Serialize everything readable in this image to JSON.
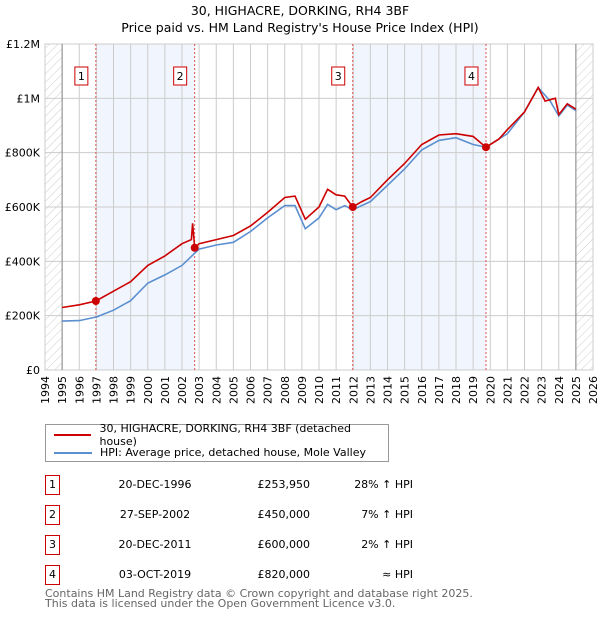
{
  "chart_data": {
    "type": "line",
    "title": "30, HIGHACRE, DORKING, RH4 3BF",
    "subtitle": "Price paid vs. HM Land Registry's House Price Index (HPI)",
    "xlim": [
      1994,
      2026
    ],
    "ylim": [
      0,
      1200000
    ],
    "x_ticks": [
      "1994",
      "1995",
      "1996",
      "1997",
      "1998",
      "1999",
      "2000",
      "2001",
      "2002",
      "2003",
      "2004",
      "2005",
      "2006",
      "2007",
      "2008",
      "2009",
      "2010",
      "2011",
      "2012",
      "2013",
      "2014",
      "2015",
      "2016",
      "2017",
      "2018",
      "2019",
      "2020",
      "2021",
      "2022",
      "2023",
      "2024",
      "2025",
      "2026"
    ],
    "y_ticks": [
      {
        "v": 0,
        "label": "£0"
      },
      {
        "v": 200000,
        "label": "£200K"
      },
      {
        "v": 400000,
        "label": "£400K"
      },
      {
        "v": 600000,
        "label": "£600K"
      },
      {
        "v": 800000,
        "label": "£800K"
      },
      {
        "v": 1000000,
        "label": "£1M"
      },
      {
        "v": 1200000,
        "label": "£1.2M"
      }
    ],
    "grid": true,
    "data_range": [
      1995,
      2025
    ],
    "shaded_bands": [
      [
        1996.97,
        2002.74
      ],
      [
        2011.97,
        2019.75
      ]
    ],
    "series": [
      {
        "name": "30, HIGHACRE, DORKING, RH4 3BF (detached house)",
        "color": "#cc0000",
        "x": [
          1995,
          1996,
          1996.97,
          1998,
          1999,
          2000,
          2001,
          2002,
          2002.55,
          2002.62,
          2002.74,
          2003,
          2004,
          2005,
          2006,
          2007,
          2008,
          2008.6,
          2009.2,
          2010,
          2010.5,
          2011,
          2011.5,
          2011.97,
          2012.5,
          2013,
          2014,
          2015,
          2016,
          2017,
          2018,
          2019,
          2019.75,
          2020.5,
          2021,
          2022,
          2022.8,
          2023.2,
          2023.8,
          2024,
          2024.5,
          2025
        ],
        "values": [
          230000,
          240000,
          253950,
          290000,
          325000,
          385000,
          420000,
          465000,
          480000,
          540000,
          450000,
          465000,
          480000,
          495000,
          530000,
          580000,
          635000,
          640000,
          555000,
          600000,
          665000,
          645000,
          640000,
          600000,
          620000,
          635000,
          700000,
          760000,
          830000,
          865000,
          870000,
          860000,
          820000,
          850000,
          885000,
          950000,
          1040000,
          990000,
          1000000,
          940000,
          980000,
          960000
        ]
      },
      {
        "name": "HPI: Average price, detached house, Mole Valley",
        "color": "#5b8fd0",
        "x": [
          1995,
          1996,
          1997,
          1998,
          1999,
          2000,
          2001,
          2002,
          2002.74,
          2003,
          2004,
          2005,
          2006,
          2007,
          2008,
          2008.6,
          2009.2,
          2010,
          2010.5,
          2011,
          2011.5,
          2011.97,
          2013,
          2014,
          2015,
          2016,
          2017,
          2018,
          2019,
          2019.75,
          2021,
          2022,
          2022.8,
          2023.5,
          2024,
          2024.5,
          2025
        ],
        "values": [
          180000,
          182000,
          195000,
          220000,
          255000,
          320000,
          350000,
          385000,
          430000,
          445000,
          460000,
          470000,
          510000,
          560000,
          605000,
          605000,
          520000,
          560000,
          610000,
          590000,
          605000,
          590000,
          620000,
          680000,
          740000,
          810000,
          845000,
          855000,
          830000,
          820000,
          870000,
          950000,
          1040000,
          990000,
          935000,
          975000,
          955000
        ]
      }
    ],
    "markers": [
      {
        "label": "1",
        "x": 1996.97,
        "value": 253950
      },
      {
        "label": "2",
        "x": 2002.74,
        "value": 450000
      },
      {
        "label": "3",
        "x": 2011.97,
        "value": 600000
      },
      {
        "label": "4",
        "x": 2019.75,
        "value": 820000
      }
    ]
  },
  "legend": {
    "property": "30, HIGHACRE, DORKING, RH4 3BF (detached house)",
    "hpi": "HPI: Average price, detached house, Mole Valley"
  },
  "transactions": [
    {
      "num": "1",
      "date": "20-DEC-1996",
      "price": "£253,950",
      "hpi": "28% ↑ HPI"
    },
    {
      "num": "2",
      "date": "27-SEP-2002",
      "price": "£450,000",
      "hpi": "7% ↑ HPI"
    },
    {
      "num": "3",
      "date": "20-DEC-2011",
      "price": "£600,000",
      "hpi": "2% ↑ HPI"
    },
    {
      "num": "4",
      "date": "03-OCT-2019",
      "price": "£820,000",
      "hpi": "≈ HPI"
    }
  ],
  "footer": {
    "line1": "Contains HM Land Registry data © Crown copyright and database right 2025.",
    "line2": "This data is licensed under the Open Government Licence v3.0."
  }
}
